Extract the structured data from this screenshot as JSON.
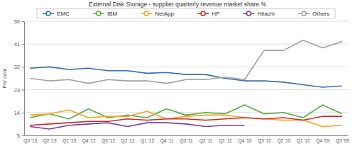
{
  "chart_data": {
    "type": "line",
    "title": "External Disk Storage - supplier quarterly revenue market share %",
    "y_label": "Per cent",
    "categories": [
      "Q3 '13",
      "Q2 '13",
      "Q1 '13",
      "Q4 '12",
      "Q3 '12",
      "Q2 '12",
      "Q1 '12",
      "Q4 '11",
      "Q3 '11",
      "Q2 '11",
      "Q1 '11",
      "Q4 '10",
      "Q3 '10",
      "Q2 '10",
      "Q1 '10",
      "Q4 '09",
      "Q3 '09"
    ],
    "series": [
      {
        "name": "EMC",
        "color": "#3a6ea5",
        "values": [
          31.5,
          32,
          31,
          31.5,
          30.5,
          30.5,
          29.5,
          29.8,
          29,
          29,
          27.5,
          26.5,
          26.5,
          26,
          25,
          24,
          24.5
        ]
      },
      {
        "name": "IBM",
        "color": "#5aa843",
        "values": [
          12,
          13.5,
          11.5,
          15.5,
          12,
          13,
          12,
          15.5,
          13,
          14,
          13.5,
          17,
          13.5,
          14,
          12,
          17,
          13.5
        ]
      },
      {
        "name": "NetApp",
        "color": "#f4a41f",
        "values": [
          13,
          13.5,
          15,
          12,
          12.5,
          12.5,
          14.5,
          11.5,
          12.5,
          13,
          13,
          12,
          11.5,
          11,
          11,
          8.5,
          9
        ]
      },
      {
        "name": "HP",
        "color": "#cf2a27",
        "values": [
          9,
          9.5,
          10,
          10.5,
          10.5,
          11.5,
          11,
          11.5,
          11.5,
          11,
          11.5,
          12,
          11.5,
          12,
          11,
          12.5,
          12.5
        ]
      },
      {
        "name": "Hitachi",
        "color": "#7b3f93",
        "values": [
          8.5,
          7.5,
          9,
          9.5,
          10,
          8.5,
          10,
          10,
          9.5,
          8.5,
          9,
          9,
          null,
          null,
          null,
          null,
          null
        ]
      },
      {
        "name": "Others",
        "color": "#a0a0a0",
        "values": [
          27.5,
          26.5,
          27,
          25.5,
          27,
          26.5,
          26.5,
          25.5,
          27,
          27,
          28,
          27,
          38.5,
          38.5,
          42.5,
          39.5,
          42
        ]
      }
    ],
    "ylim": [
      5,
      50
    ],
    "yticks": [
      5,
      14,
      23,
      32,
      41,
      50
    ],
    "grid": true,
    "legend": "top"
  }
}
